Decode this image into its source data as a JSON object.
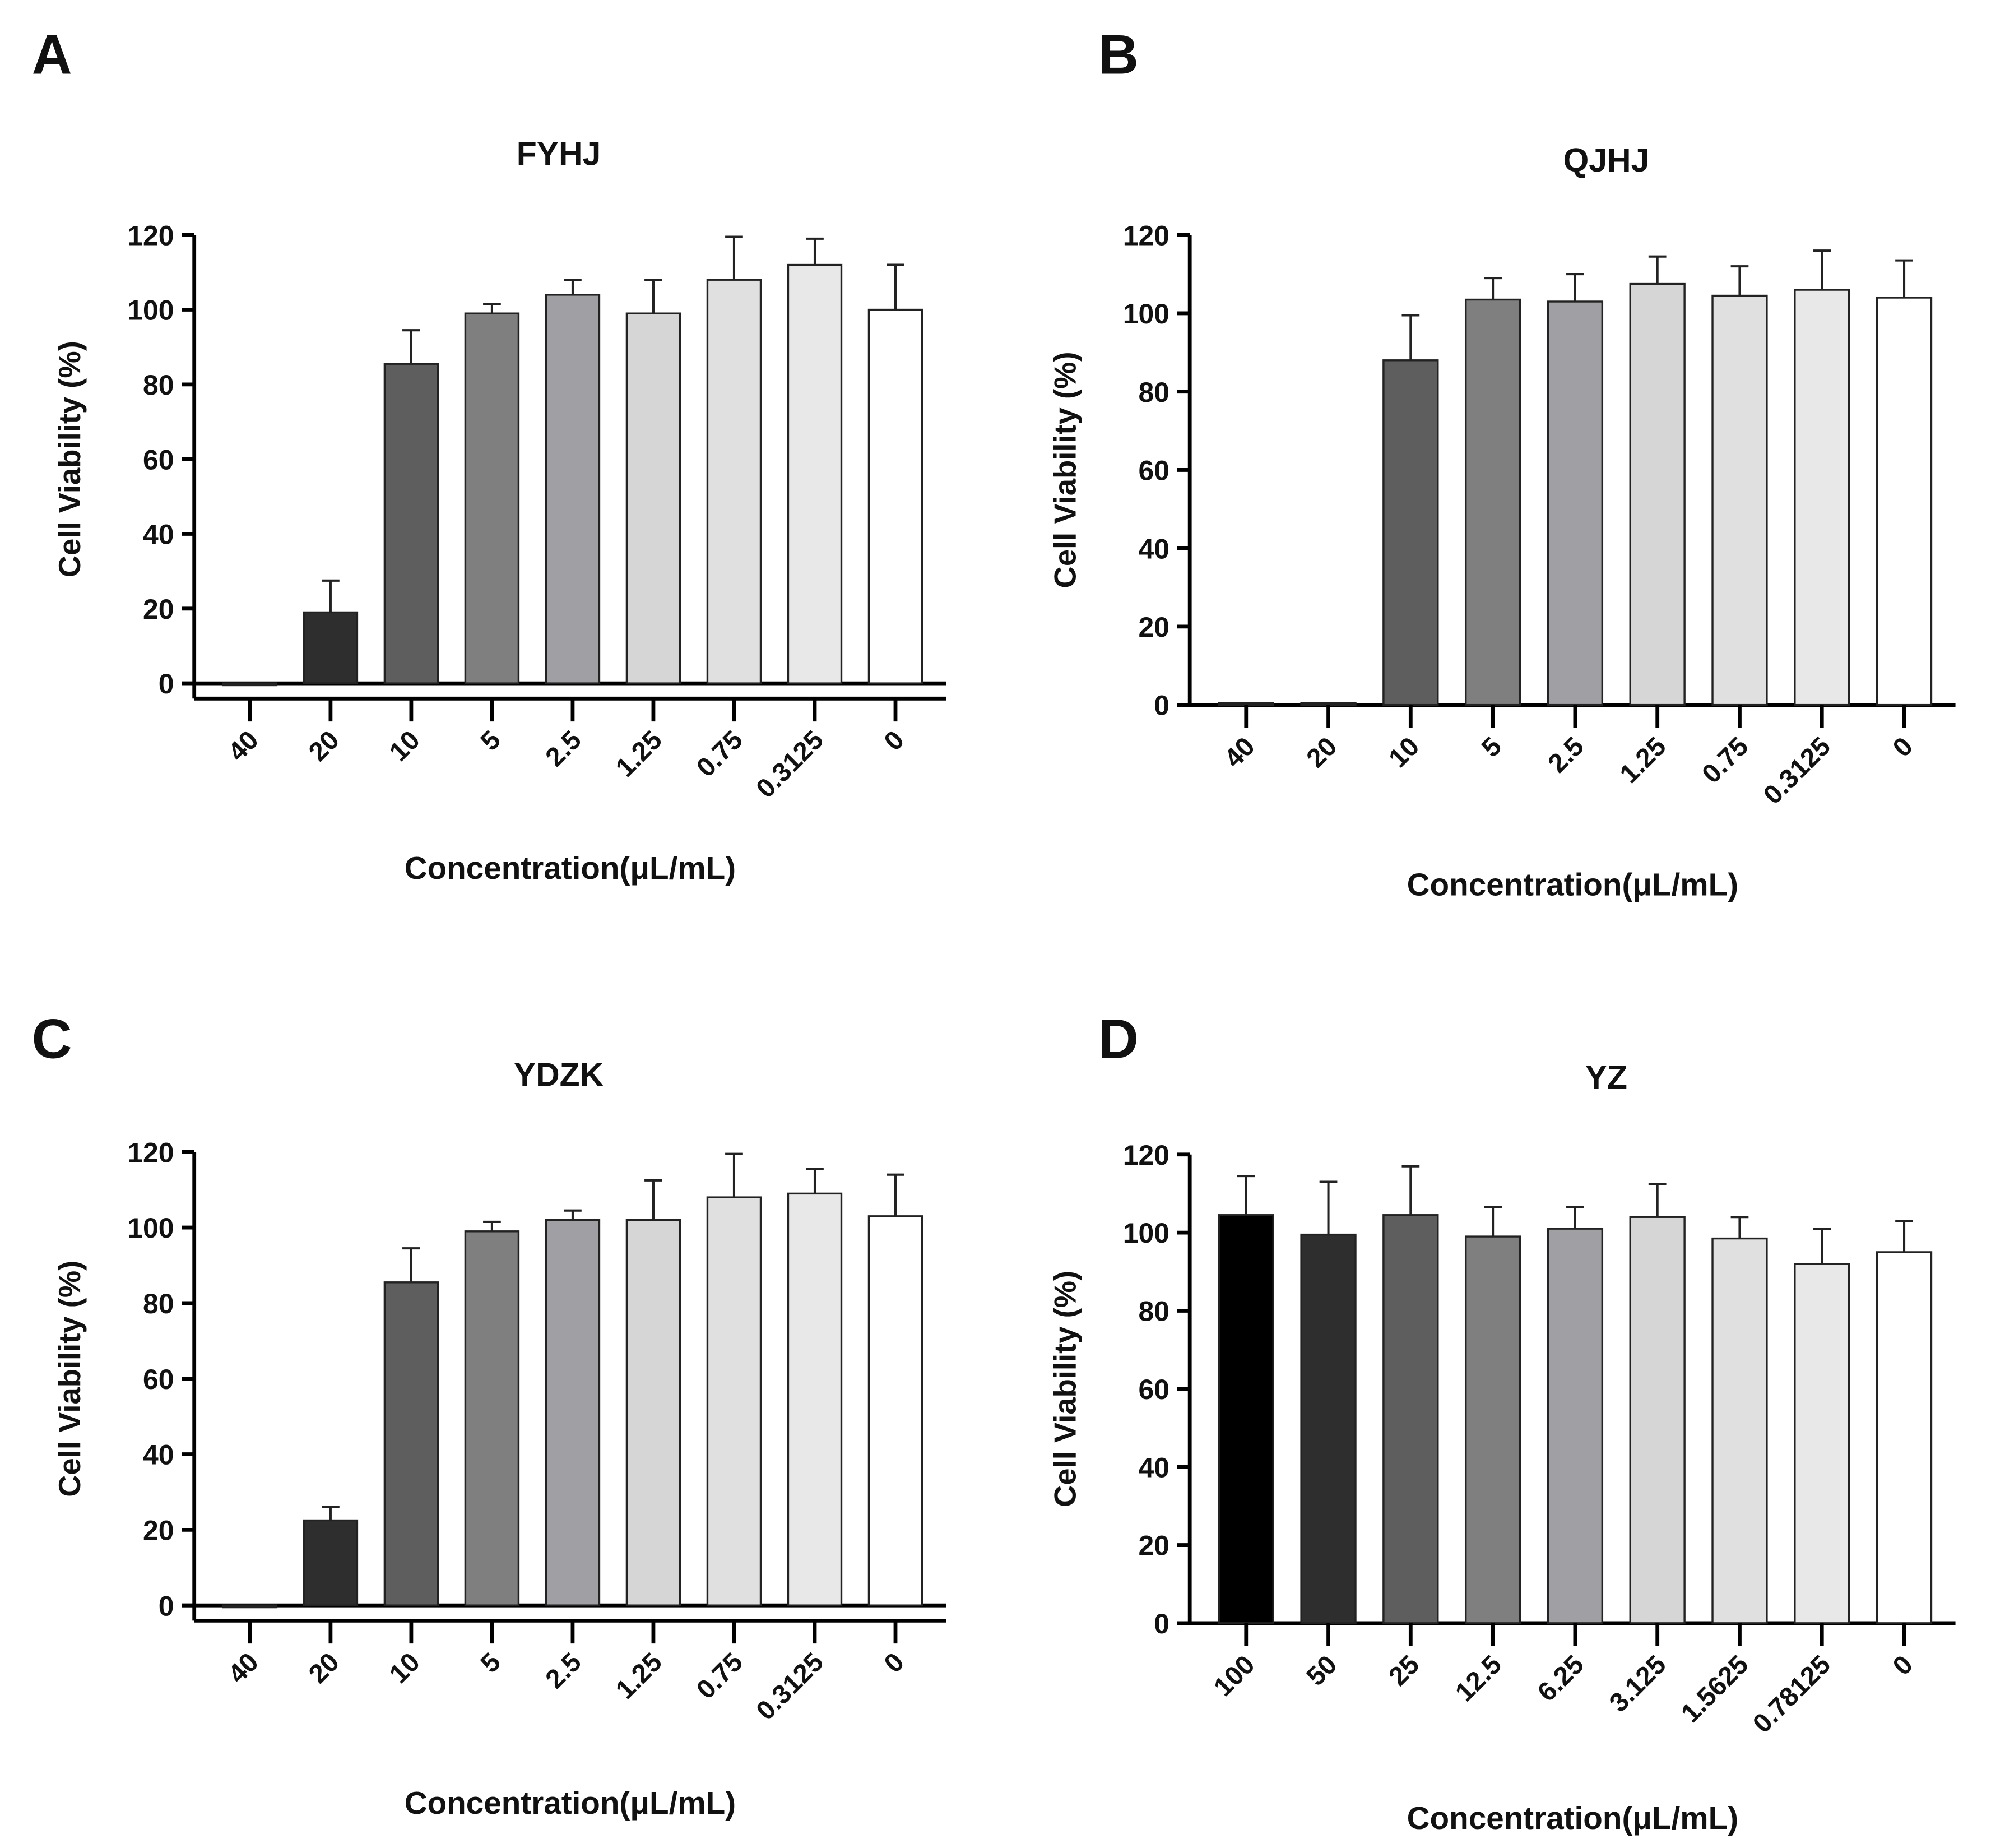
{
  "chart_data": [
    {
      "panel": "A",
      "type": "bar",
      "title": "FYHJ",
      "xlabel": "Concentration(μL/mL)",
      "ylabel": "Cell Viability (%)",
      "ylim": [
        0,
        120
      ],
      "yticks": [
        0,
        20,
        40,
        60,
        80,
        100,
        120
      ],
      "categories": [
        "40",
        "20",
        "10",
        "5",
        "2.5",
        "1.25",
        "0.75",
        "0.3125",
        "0"
      ],
      "values": [
        -0.5,
        19,
        85.5,
        99,
        104,
        99,
        108,
        112,
        100
      ],
      "errors": [
        0,
        8.5,
        9,
        2.5,
        4,
        9,
        11.5,
        7,
        12
      ],
      "colors": [
        "#2e2e2e",
        "#2e2e2e",
        "#5e5e5e",
        "#7f7f7f",
        "#a0a0a4",
        "#d6d6d6",
        "#e0e0e0",
        "#e8e8e8",
        "#ffffff"
      ],
      "offset_axis": true
    },
    {
      "panel": "B",
      "type": "bar",
      "title": "QJHJ",
      "xlabel": "Concentration(μL/mL)",
      "ylabel": "Cell Viability (%)",
      "ylim": [
        0,
        120
      ],
      "yticks": [
        0,
        20,
        40,
        60,
        80,
        100,
        120
      ],
      "categories": [
        "40",
        "20",
        "10",
        "5",
        "2.5",
        "1.25",
        "0.75",
        "0.3125",
        "0"
      ],
      "values": [
        0.5,
        0.5,
        88,
        103.5,
        103,
        107.5,
        104.5,
        106,
        104
      ],
      "errors": [
        0,
        0,
        11.5,
        5.5,
        7,
        7,
        7.5,
        10,
        9.5
      ],
      "colors": [
        "#2e2e2e",
        "#2e2e2e",
        "#5e5e5e",
        "#7f7f7f",
        "#a0a0a4",
        "#d6d6d6",
        "#e0e0e0",
        "#e8e8e8",
        "#ffffff"
      ],
      "offset_axis": false
    },
    {
      "panel": "C",
      "type": "bar",
      "title": "YDZK",
      "xlabel": "Concentration(μL/mL)",
      "ylabel": "Cell Viability (%)",
      "ylim": [
        0,
        120
      ],
      "yticks": [
        0,
        20,
        40,
        60,
        80,
        100,
        120
      ],
      "categories": [
        "40",
        "20",
        "10",
        "5",
        "2.5",
        "1.25",
        "0.75",
        "0.3125",
        "0"
      ],
      "values": [
        0,
        22.5,
        85.5,
        99,
        102,
        102,
        108,
        109,
        103
      ],
      "errors": [
        0,
        3.5,
        9,
        2.5,
        2.5,
        10.5,
        11.5,
        6.5,
        11
      ],
      "colors": [
        "#2e2e2e",
        "#2e2e2e",
        "#5e5e5e",
        "#7f7f7f",
        "#a0a0a4",
        "#d6d6d6",
        "#e0e0e0",
        "#e8e8e8",
        "#ffffff"
      ],
      "offset_axis": true
    },
    {
      "panel": "D",
      "type": "bar",
      "title": "YZ",
      "xlabel": "Concentration(μL/mL)",
      "ylabel": "Cell Viability (%)",
      "ylim": [
        0,
        120
      ],
      "yticks": [
        0,
        20,
        40,
        60,
        80,
        100,
        120
      ],
      "categories": [
        "100",
        "50",
        "25",
        "12.5",
        "6.25",
        "3.125",
        "1.5625",
        "0.78125",
        "0"
      ],
      "values": [
        104.5,
        99.5,
        104.5,
        99,
        101,
        104,
        98.5,
        92,
        95
      ],
      "errors": [
        10,
        13.5,
        12.5,
        7.5,
        5.5,
        8.5,
        5.5,
        9,
        8
      ],
      "colors": [
        "#000000",
        "#2e2e2e",
        "#5e5e5e",
        "#7f7f7f",
        "#a0a0a4",
        "#d6d6d6",
        "#e0e0e0",
        "#e8e8e8",
        "#ffffff"
      ],
      "offset_axis": false
    }
  ]
}
